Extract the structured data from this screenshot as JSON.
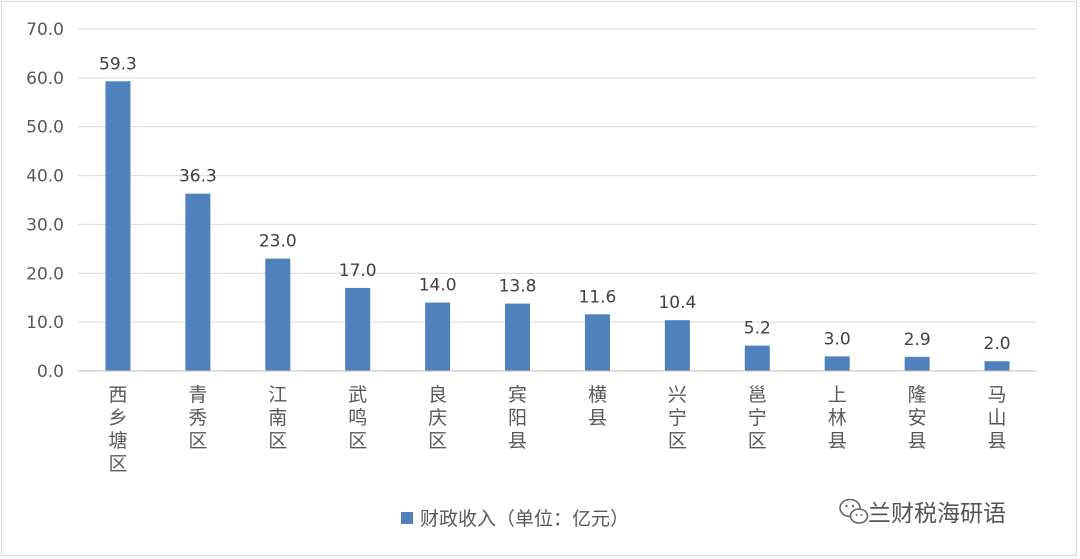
{
  "chart_data": {
    "type": "bar",
    "categories": [
      "西乡塘区",
      "青秀区",
      "江南区",
      "武鸣区",
      "良庆区",
      "宾阳县",
      "横县",
      "兴宁区",
      "邕宁区",
      "上林县",
      "隆安县",
      "马山县"
    ],
    "series": [
      {
        "name": "财政收入（单位：亿元）",
        "values": [
          59.3,
          36.3,
          23.0,
          17.0,
          14.0,
          13.8,
          11.6,
          10.4,
          5.2,
          3.0,
          2.9,
          2.0
        ],
        "color": "#4f81bd"
      }
    ],
    "data_labels": [
      "59.3",
      "36.3",
      "23.0",
      "17.0",
      "14.0",
      "13.8",
      "11.6",
      "10.4",
      "5.2",
      "3.0",
      "2.9",
      "2.0"
    ],
    "y_ticks": [
      "0.0",
      "10.0",
      "20.0",
      "30.0",
      "40.0",
      "50.0",
      "60.0",
      "70.0"
    ],
    "ylim": [
      0,
      70
    ],
    "grid": true,
    "legend_position": "bottom",
    "title": "",
    "xlabel": "",
    "ylabel": ""
  },
  "watermark": {
    "text": "兰财税海研语",
    "icon": "wechat-icon"
  }
}
